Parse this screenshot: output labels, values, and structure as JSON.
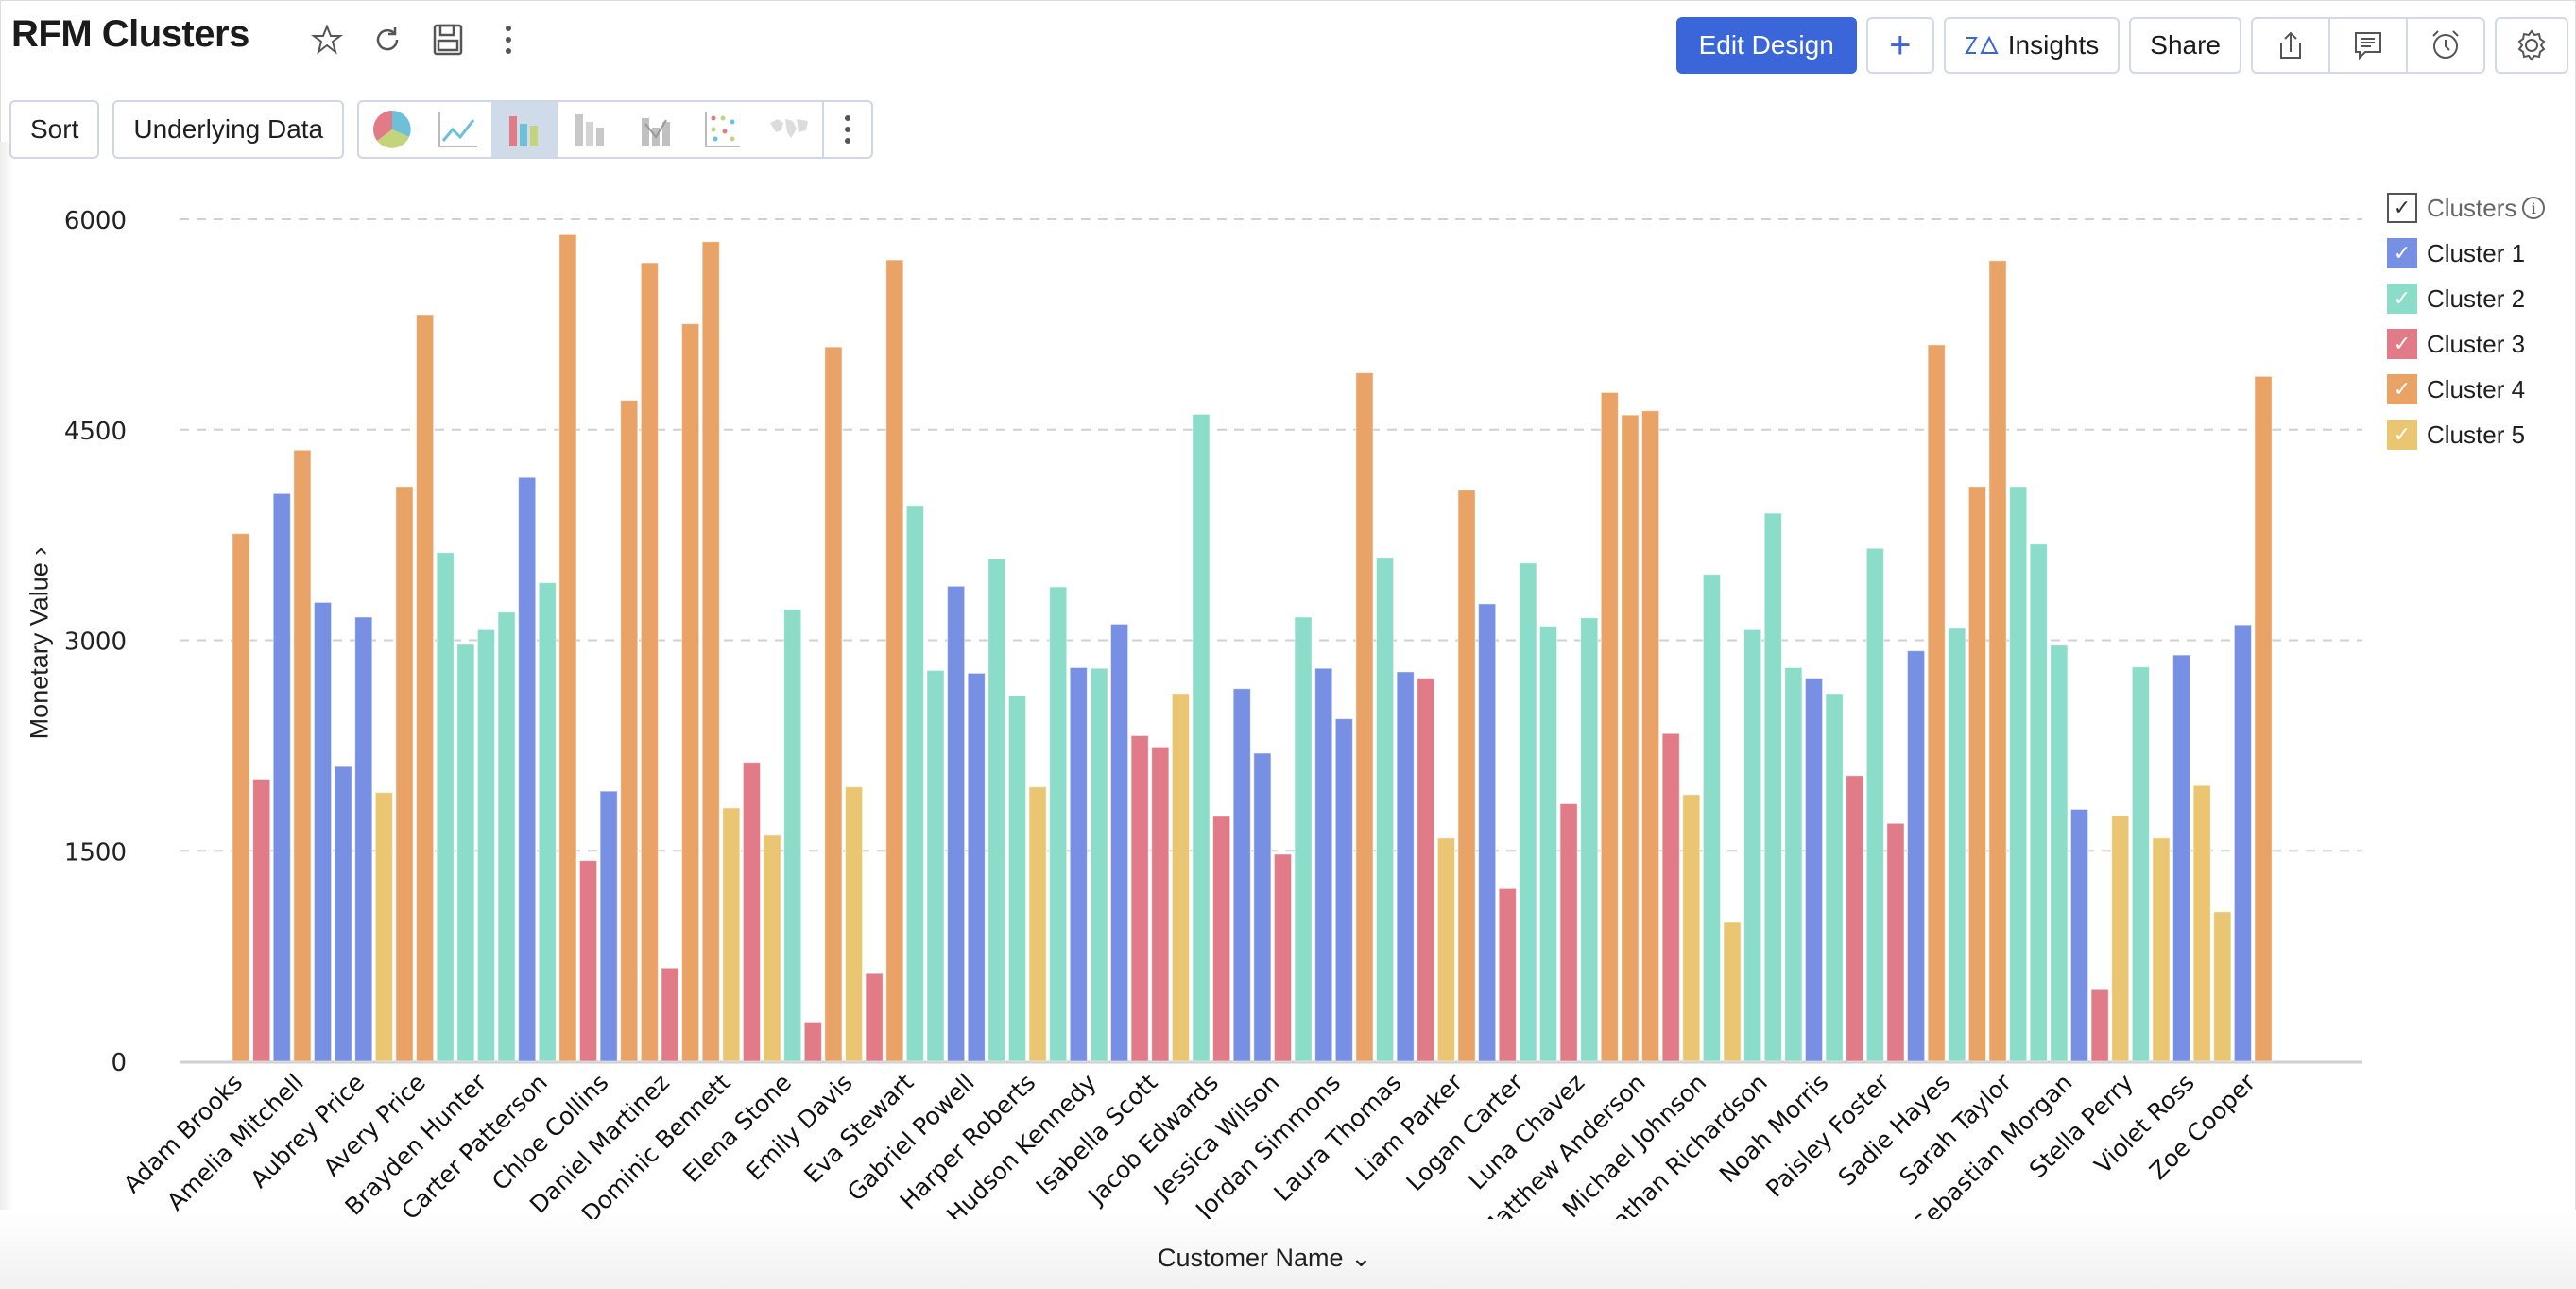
{
  "header": {
    "title": "RFM Clusters",
    "icons": [
      "star-icon",
      "refresh-icon",
      "save-icon",
      "more-vertical-icon"
    ],
    "edit_design_label": "Edit Design",
    "add_label": "+",
    "insights_label": "Insights",
    "share_label": "Share"
  },
  "toolbar": {
    "sort_label": "Sort",
    "underlying_data_label": "Underlying Data",
    "chart_types": [
      "pie",
      "line",
      "bar",
      "stacked-bar",
      "bar-line",
      "scatter",
      "map"
    ],
    "active_chart_type": "bar"
  },
  "legend": {
    "title": "Clusters",
    "items": [
      {
        "label": "Cluster 1",
        "color": "#7790e4"
      },
      {
        "label": "Cluster 2",
        "color": "#8cdcca"
      },
      {
        "label": "Cluster 3",
        "color": "#e07b87"
      },
      {
        "label": "Cluster 4",
        "color": "#e9a367"
      },
      {
        "label": "Cluster 5",
        "color": "#ebc672"
      }
    ]
  },
  "chart_data": {
    "type": "bar",
    "title": "RFM Clusters",
    "xlabel": "Customer Name",
    "ylabel": "Monetary Value",
    "ylim": [
      0,
      6000
    ],
    "yticks": [
      0,
      1500,
      3000,
      4500,
      6000
    ],
    "grid": true,
    "legend_position": "right",
    "tick_labels": [
      "Adam Brooks",
      "Amelia Mitchell",
      "Aubrey Price",
      "Avery Price",
      "Brayden Hunter",
      "Carter Patterson",
      "Chloe Collins",
      "Daniel Martinez",
      "Dominic Bennett",
      "Elena Stone",
      "Emily Davis",
      "Eva Stewart",
      "Gabriel Powell",
      "Harper Roberts",
      "Hudson Kennedy",
      "Isabella Scott",
      "Jacob Edwards",
      "Jessica Wilson",
      "Jordan Simmons",
      "Laura Thomas",
      "Liam Parker",
      "Logan Carter",
      "Luna Chavez",
      "Matthew Anderson",
      "Michael Johnson",
      "Nathan Richardson",
      "Noah Morris",
      "Paisley Foster",
      "Sadie Hayes",
      "Sarah Taylor",
      "Sebastian Morgan",
      "Stella Perry",
      "Violet Ross",
      "Zoe Cooper"
    ],
    "bars": [
      {
        "cluster": 4,
        "value": 3760
      },
      {
        "cluster": 3,
        "value": 2010
      },
      {
        "cluster": 1,
        "value": 4045
      },
      {
        "cluster": 4,
        "value": 4355
      },
      {
        "cluster": 1,
        "value": 3270
      },
      {
        "cluster": 1,
        "value": 2100
      },
      {
        "cluster": 1,
        "value": 3165
      },
      {
        "cluster": 5,
        "value": 1915
      },
      {
        "cluster": 4,
        "value": 4095
      },
      {
        "cluster": 4,
        "value": 5320
      },
      {
        "cluster": 2,
        "value": 3625
      },
      {
        "cluster": 2,
        "value": 2970
      },
      {
        "cluster": 2,
        "value": 3075
      },
      {
        "cluster": 2,
        "value": 3200
      },
      {
        "cluster": 1,
        "value": 4160
      },
      {
        "cluster": 2,
        "value": 3410
      },
      {
        "cluster": 4,
        "value": 5890
      },
      {
        "cluster": 3,
        "value": 1430
      },
      {
        "cluster": 1,
        "value": 1925
      },
      {
        "cluster": 4,
        "value": 4710
      },
      {
        "cluster": 4,
        "value": 5690
      },
      {
        "cluster": 3,
        "value": 665
      },
      {
        "cluster": 4,
        "value": 5255
      },
      {
        "cluster": 4,
        "value": 5840
      },
      {
        "cluster": 5,
        "value": 1805
      },
      {
        "cluster": 3,
        "value": 2130
      },
      {
        "cluster": 5,
        "value": 1610
      },
      {
        "cluster": 2,
        "value": 3220
      },
      {
        "cluster": 3,
        "value": 280
      },
      {
        "cluster": 4,
        "value": 5090
      },
      {
        "cluster": 5,
        "value": 1955
      },
      {
        "cluster": 3,
        "value": 625
      },
      {
        "cluster": 4,
        "value": 5710
      },
      {
        "cluster": 2,
        "value": 3960
      },
      {
        "cluster": 2,
        "value": 2785
      },
      {
        "cluster": 1,
        "value": 3385
      },
      {
        "cluster": 1,
        "value": 2765
      },
      {
        "cluster": 2,
        "value": 3580
      },
      {
        "cluster": 2,
        "value": 2605
      },
      {
        "cluster": 5,
        "value": 1955
      },
      {
        "cluster": 2,
        "value": 3380
      },
      {
        "cluster": 1,
        "value": 2805
      },
      {
        "cluster": 2,
        "value": 2800
      },
      {
        "cluster": 1,
        "value": 3115
      },
      {
        "cluster": 3,
        "value": 2320
      },
      {
        "cluster": 3,
        "value": 2240
      },
      {
        "cluster": 5,
        "value": 2620
      },
      {
        "cluster": 2,
        "value": 4610
      },
      {
        "cluster": 3,
        "value": 1745
      },
      {
        "cluster": 1,
        "value": 2655
      },
      {
        "cluster": 1,
        "value": 2195
      },
      {
        "cluster": 3,
        "value": 1475
      },
      {
        "cluster": 2,
        "value": 3165
      },
      {
        "cluster": 1,
        "value": 2800
      },
      {
        "cluster": 1,
        "value": 2440
      },
      {
        "cluster": 4,
        "value": 4905
      },
      {
        "cluster": 2,
        "value": 3590
      },
      {
        "cluster": 1,
        "value": 2775
      },
      {
        "cluster": 3,
        "value": 2730
      },
      {
        "cluster": 5,
        "value": 1590
      },
      {
        "cluster": 4,
        "value": 4070
      },
      {
        "cluster": 1,
        "value": 3260
      },
      {
        "cluster": 3,
        "value": 1230
      },
      {
        "cluster": 2,
        "value": 3550
      },
      {
        "cluster": 2,
        "value": 3100
      },
      {
        "cluster": 3,
        "value": 1835
      },
      {
        "cluster": 2,
        "value": 3160
      },
      {
        "cluster": 4,
        "value": 4765
      },
      {
        "cluster": 4,
        "value": 4605
      },
      {
        "cluster": 4,
        "value": 4635
      },
      {
        "cluster": 3,
        "value": 2335
      },
      {
        "cluster": 5,
        "value": 1900
      },
      {
        "cluster": 2,
        "value": 3470
      },
      {
        "cluster": 5,
        "value": 990
      },
      {
        "cluster": 2,
        "value": 3075
      },
      {
        "cluster": 2,
        "value": 3905
      },
      {
        "cluster": 2,
        "value": 2805
      },
      {
        "cluster": 1,
        "value": 2730
      },
      {
        "cluster": 2,
        "value": 2620
      },
      {
        "cluster": 3,
        "value": 2035
      },
      {
        "cluster": 2,
        "value": 3655
      },
      {
        "cluster": 3,
        "value": 1695
      },
      {
        "cluster": 1,
        "value": 2925
      },
      {
        "cluster": 4,
        "value": 5105
      },
      {
        "cluster": 2,
        "value": 3085
      },
      {
        "cluster": 4,
        "value": 4095
      },
      {
        "cluster": 4,
        "value": 5705
      },
      {
        "cluster": 2,
        "value": 4095
      },
      {
        "cluster": 2,
        "value": 3685
      },
      {
        "cluster": 2,
        "value": 2965
      },
      {
        "cluster": 1,
        "value": 1795
      },
      {
        "cluster": 3,
        "value": 510
      },
      {
        "cluster": 5,
        "value": 1750
      },
      {
        "cluster": 2,
        "value": 2810
      },
      {
        "cluster": 5,
        "value": 1590
      },
      {
        "cluster": 1,
        "value": 2895
      },
      {
        "cluster": 5,
        "value": 1965
      },
      {
        "cluster": 5,
        "value": 1065
      },
      {
        "cluster": 1,
        "value": 3110
      },
      {
        "cluster": 4,
        "value": 4880
      }
    ]
  }
}
